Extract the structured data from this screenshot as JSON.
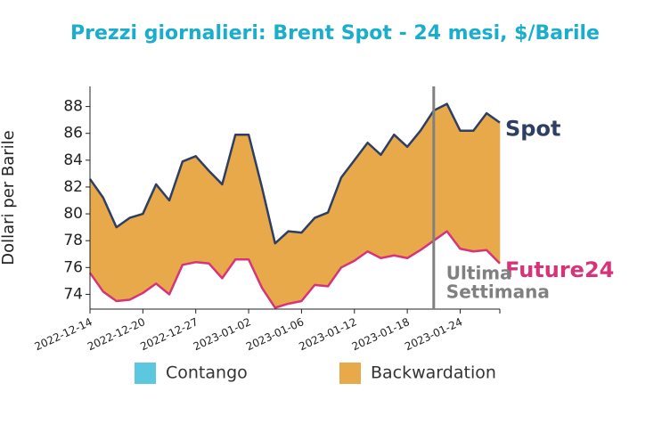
{
  "chart_data": {
    "type": "band",
    "title": "Prezzi giornalieri: Brent Spot - 24 mesi, $/Barile",
    "y_label": "Dollari per Barile",
    "categories": [
      "2022-12-14",
      null,
      null,
      null,
      "2022-12-20",
      null,
      null,
      null,
      "2022-12-27",
      null,
      null,
      null,
      "2023-01-02",
      null,
      null,
      null,
      "2023-01-06",
      null,
      null,
      null,
      "2023-01-12",
      null,
      null,
      null,
      "2023-01-18",
      null,
      null,
      null,
      "2023-01-24",
      null,
      null,
      null
    ],
    "series": [
      {
        "name": "Spot",
        "color": "#2e3f63",
        "values": [
          82.6,
          81.2,
          79.0,
          79.7,
          80.0,
          82.2,
          81.0,
          83.9,
          84.3,
          83.2,
          82.2,
          85.9,
          85.9,
          82.0,
          77.8,
          78.7,
          78.6,
          79.7,
          80.1,
          82.7,
          84.0,
          85.3,
          84.4,
          85.9,
          85.0,
          86.2,
          87.7,
          88.2,
          86.2,
          86.2,
          87.5,
          86.8
        ]
      },
      {
        "name": "Future24",
        "color": "#d6347a",
        "values": [
          75.6,
          74.2,
          73.5,
          73.6,
          74.1,
          74.8,
          74.0,
          76.2,
          76.4,
          76.3,
          75.2,
          76.6,
          76.6,
          74.5,
          73.0,
          73.3,
          73.5,
          74.7,
          74.6,
          76.0,
          76.5,
          77.2,
          76.7,
          76.9,
          76.7,
          77.3,
          78.0,
          78.7,
          77.4,
          77.2,
          77.3,
          76.3
        ]
      }
    ],
    "fill_legend": [
      {
        "name": "Contango",
        "color": "#5bc8e0"
      },
      {
        "name": "Backwardation",
        "color": "#e8a94a"
      }
    ],
    "ylim": [
      72.9,
      89.5
    ],
    "yticks": [
      74,
      76,
      78,
      80,
      82,
      84,
      86,
      88
    ],
    "marker_index": 26,
    "marker_color": "#808080",
    "annotation": [
      "Ultima",
      "Settimana"
    ]
  }
}
